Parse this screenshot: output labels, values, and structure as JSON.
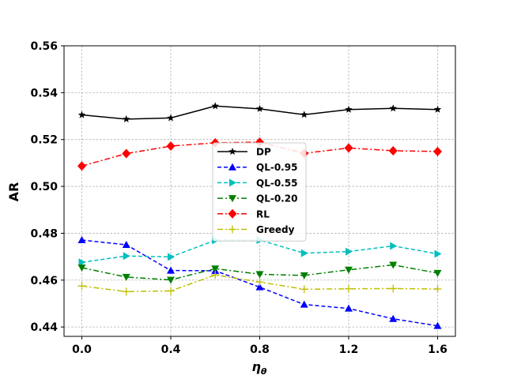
{
  "chart_data": {
    "type": "line",
    "xlabel": "ηθ",
    "ylabel": "AR",
    "x": [
      0.0,
      0.2,
      0.4,
      0.6,
      0.8,
      1.0,
      1.2,
      1.4,
      1.6
    ],
    "xticks": [
      "0.0",
      "0.4",
      "0.8",
      "1.2",
      "1.6"
    ],
    "xtick_values": [
      0.0,
      0.4,
      0.8,
      1.2,
      1.6
    ],
    "yticks": [
      "0.44",
      "0.46",
      "0.48",
      "0.50",
      "0.52",
      "0.54",
      "0.56"
    ],
    "ytick_values": [
      0.44,
      0.46,
      0.48,
      0.5,
      0.52,
      0.54,
      0.56
    ],
    "xlim": [
      -0.08,
      1.68
    ],
    "ylim": [
      0.436,
      0.56
    ],
    "grid": true,
    "legend_position": "center",
    "series": [
      {
        "name": "DP",
        "color": "#000000",
        "dash": "solid",
        "marker": "star",
        "values": [
          0.5305,
          0.5287,
          0.5292,
          0.5343,
          0.5331,
          0.5306,
          0.5328,
          0.5333,
          0.5328
        ]
      },
      {
        "name": "QL-0.95",
        "color": "#0000ff",
        "dash": "dashed",
        "marker": "triangle-up",
        "values": [
          0.4771,
          0.4751,
          0.4641,
          0.464,
          0.457,
          0.4496,
          0.4479,
          0.4435,
          0.4405
        ]
      },
      {
        "name": "QL-0.55",
        "color": "#00bfbf",
        "dash": "dashed",
        "marker": "triangle-right",
        "values": [
          0.4676,
          0.4703,
          0.4699,
          0.477,
          0.4771,
          0.4715,
          0.4722,
          0.4746,
          0.4712
        ]
      },
      {
        "name": "QL-0.20",
        "color": "#008000",
        "dash": "dashdot",
        "marker": "triangle-down",
        "values": [
          0.4653,
          0.4613,
          0.4601,
          0.4649,
          0.4625,
          0.462,
          0.4644,
          0.4665,
          0.463
        ]
      },
      {
        "name": "RL",
        "color": "#ff0000",
        "dash": "dashdot",
        "marker": "diamond",
        "values": [
          0.5087,
          0.514,
          0.5172,
          0.5186,
          0.5189,
          0.5141,
          0.5164,
          0.5152,
          0.5149
        ]
      },
      {
        "name": "Greedy",
        "color": "#bfbf00",
        "dash": "dashdot",
        "marker": "plus",
        "values": [
          0.4575,
          0.4551,
          0.4554,
          0.4622,
          0.4592,
          0.4561,
          0.4563,
          0.4564,
          0.4562
        ]
      }
    ]
  }
}
